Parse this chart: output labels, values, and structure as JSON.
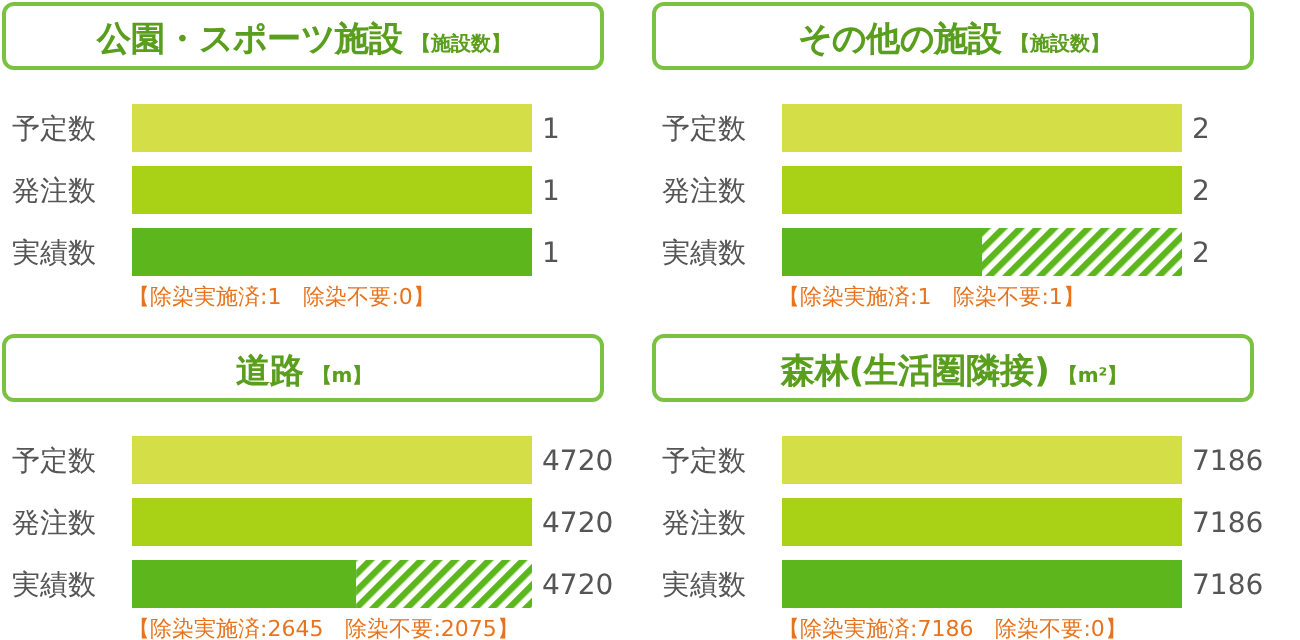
{
  "chart_data": [
    {
      "type": "bar",
      "orientation": "horizontal",
      "stacked": true,
      "title": "公園・スポーツ施設",
      "subtitle": "【施設数】",
      "categories": [
        "予定数",
        "発注数",
        "実績数"
      ],
      "series": [
        {
          "colors": [
            "#d4df48",
            "#a9d216",
            "#5db61c"
          ],
          "values": [
            1,
            1,
            1
          ],
          "value_labels": [
            "1",
            "1",
            null
          ]
        },
        {
          "color": "#5db61c",
          "values": [
            null,
            null,
            0
          ]
        }
      ],
      "totals": [
        null,
        null,
        "1"
      ],
      "annotations": [
        "【除染実施済:1　除染不要:0】"
      ]
    },
    {
      "type": "bar",
      "orientation": "horizontal",
      "stacked": true,
      "title": "その他の施設",
      "subtitle": "【施設数】",
      "categories": [
        "予定数",
        "発注数",
        "実績数"
      ],
      "series": [
        {
          "colors": [
            "#d4df48",
            "#a9d216",
            "#5db61c"
          ],
          "values": [
            2,
            2,
            1
          ],
          "value_labels": [
            "2",
            "2",
            null
          ]
        },
        {
          "color": "#5db61c",
          "values": [
            null,
            null,
            1
          ]
        }
      ],
      "totals": [
        null,
        null,
        "2"
      ],
      "annotations": [
        "【除染実施済:1　除染不要:1】"
      ]
    },
    {
      "type": "bar",
      "orientation": "horizontal",
      "stacked": true,
      "title": "道路",
      "subtitle": "【m】",
      "categories": [
        "予定数",
        "発注数",
        "実績数"
      ],
      "series": [
        {
          "colors": [
            "#d4df48",
            "#a9d216",
            "#5db61c"
          ],
          "values": [
            4720,
            4720,
            2645
          ],
          "value_labels": [
            "4720",
            "4720",
            null
          ]
        },
        {
          "color": "#5db61c",
          "values": [
            null,
            null,
            2075
          ]
        }
      ],
      "totals": [
        null,
        null,
        "4720"
      ],
      "annotations": [
        "【除染実施済:2645　除染不要:2075】"
      ]
    },
    {
      "type": "bar",
      "orientation": "horizontal",
      "stacked": true,
      "title": "森林(生活圏隣接)",
      "subtitle": "【m²】",
      "categories": [
        "予定数",
        "発注数",
        "実績数"
      ],
      "series": [
        {
          "colors": [
            "#d4df48",
            "#a9d216",
            "#5db61c"
          ],
          "values": [
            7186,
            7186,
            7186
          ],
          "value_labels": [
            "7186",
            "7186",
            null
          ]
        },
        {
          "color": "#5db61c",
          "values": [
            null,
            null,
            0
          ]
        }
      ],
      "totals": [
        null,
        null,
        "7186"
      ],
      "annotations": [
        "【除染実施済:7186　除染不要:0】"
      ]
    }
  ]
}
